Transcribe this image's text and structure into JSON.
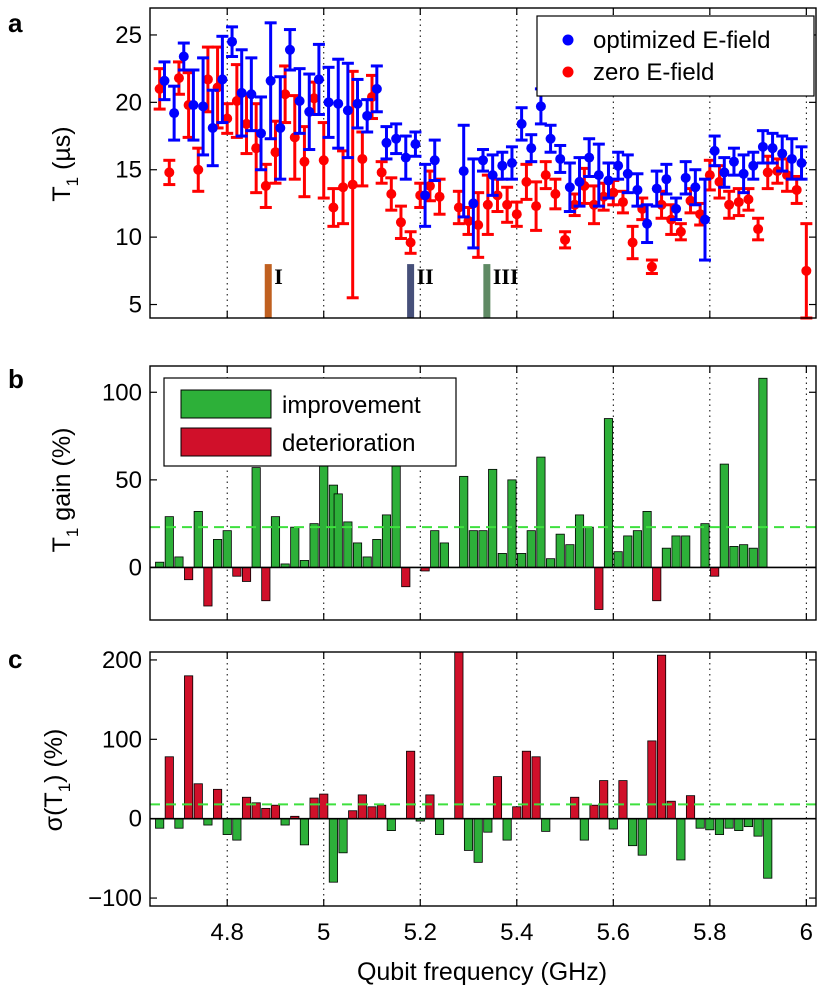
{
  "chart_data": [
    {
      "panel": "a",
      "type": "scatter",
      "ylabel": "T1 (µs)",
      "ylim": [
        4,
        27
      ],
      "yticks": [
        5,
        10,
        15,
        20,
        25
      ],
      "xlim": [
        4.64,
        6.02
      ],
      "legend_position": "top-right",
      "series": [
        {
          "name": "optimized E-field",
          "color": "#0000ff",
          "points": [
            [
              4.67,
              21.6,
              1.4
            ],
            [
              4.69,
              19.2,
              2.0
            ],
            [
              4.71,
              23.4,
              1.0
            ],
            [
              4.73,
              19.8,
              2.6
            ],
            [
              4.75,
              19.7,
              3.6
            ],
            [
              4.77,
              18.1,
              2.8
            ],
            [
              4.79,
              21.7,
              3.2
            ],
            [
              4.81,
              24.5,
              1.1
            ],
            [
              4.83,
              20.7,
              3.2
            ],
            [
              4.85,
              20.6,
              2.7
            ],
            [
              4.87,
              17.7,
              2.7
            ],
            [
              4.89,
              21.6,
              4.3
            ],
            [
              4.91,
              18.1,
              3.8
            ],
            [
              4.93,
              23.9,
              1.5
            ],
            [
              4.95,
              20.1,
              2.4
            ],
            [
              4.97,
              19.3,
              2.8
            ],
            [
              4.99,
              21.7,
              2.6
            ],
            [
              5.01,
              20.0,
              2.6
            ],
            [
              5.03,
              19.9,
              3.3
            ],
            [
              5.05,
              19.4,
              3.5
            ],
            [
              5.07,
              19.9,
              1.8
            ],
            [
              5.09,
              19.0,
              1.2
            ],
            [
              5.11,
              21.0,
              1.7
            ],
            [
              5.13,
              17.0,
              1.2
            ],
            [
              5.15,
              17.3,
              1.1
            ],
            [
              5.17,
              15.9,
              1.6
            ],
            [
              5.19,
              16.9,
              0.9
            ],
            [
              5.21,
              13.1,
              2.3
            ],
            [
              5.23,
              15.7,
              1.5
            ],
            [
              5.29,
              14.9,
              3.4
            ],
            [
              5.31,
              12.5,
              3.3
            ],
            [
              5.33,
              15.7,
              0.8
            ],
            [
              5.35,
              14.6,
              1.5
            ],
            [
              5.37,
              15.3,
              1.0
            ],
            [
              5.39,
              15.5,
              1.2
            ],
            [
              5.41,
              18.4,
              1.2
            ],
            [
              5.43,
              16.6,
              1.0
            ],
            [
              5.45,
              19.7,
              1.3
            ],
            [
              5.47,
              17.3,
              1.0
            ],
            [
              5.49,
              15.8,
              1.0
            ],
            [
              5.51,
              13.7,
              1.8
            ],
            [
              5.53,
              14.1,
              1.8
            ],
            [
              5.55,
              15.9,
              1.4
            ],
            [
              5.57,
              14.6,
              2.3
            ],
            [
              5.59,
              14.2,
              1.3
            ],
            [
              5.61,
              15.3,
              1.0
            ],
            [
              5.63,
              14.7,
              1.4
            ],
            [
              5.65,
              13.5,
              1.2
            ],
            [
              5.67,
              11.0,
              1.4
            ],
            [
              5.69,
              13.6,
              1.3
            ],
            [
              5.71,
              14.3,
              1.1
            ],
            [
              5.73,
              12.1,
              0.8
            ],
            [
              5.75,
              14.4,
              1.2
            ],
            [
              5.77,
              13.7,
              1.3
            ],
            [
              5.79,
              11.3,
              3.0
            ],
            [
              5.81,
              16.4,
              1.1
            ],
            [
              5.83,
              14.8,
              1.1
            ],
            [
              5.85,
              15.6,
              1.0
            ],
            [
              5.87,
              14.7,
              1.4
            ],
            [
              5.89,
              15.3,
              1.0
            ],
            [
              5.91,
              16.7,
              1.2
            ],
            [
              5.93,
              16.6,
              1.1
            ],
            [
              5.95,
              16.2,
              1.3
            ],
            [
              5.97,
              15.8,
              1.5
            ],
            [
              5.99,
              15.5,
              1.2
            ]
          ]
        },
        {
          "name": "zero E-field",
          "color": "#ff0000",
          "points": [
            [
              4.66,
              21.0,
              1.5
            ],
            [
              4.68,
              14.8,
              0.9
            ],
            [
              4.7,
              21.8,
              1.2
            ],
            [
              4.72,
              19.8,
              2.4
            ],
            [
              4.74,
              15.0,
              1.6
            ],
            [
              4.76,
              21.7,
              2.4
            ],
            [
              4.78,
              21.1,
              3.0
            ],
            [
              4.8,
              18.8,
              1.1
            ],
            [
              4.82,
              20.1,
              2.7
            ],
            [
              4.84,
              18.4,
              2.2
            ],
            [
              4.86,
              16.6,
              3.3
            ],
            [
              4.88,
              13.8,
              1.6
            ],
            [
              4.9,
              16.3,
              2.3
            ],
            [
              4.92,
              20.6,
              2.1
            ],
            [
              4.94,
              17.4,
              3.1
            ],
            [
              4.96,
              15.6,
              2.6
            ],
            [
              4.98,
              20.3,
              1.2
            ],
            [
              5.0,
              15.7,
              2.8
            ],
            [
              5.02,
              12.2,
              1.4
            ],
            [
              5.04,
              13.7,
              2.7
            ],
            [
              5.06,
              13.9,
              8.4
            ],
            [
              5.08,
              15.8,
              2.0
            ],
            [
              5.1,
              20.4,
              1.6
            ],
            [
              5.12,
              14.8,
              0.8
            ],
            [
              5.14,
              13.2,
              1.2
            ],
            [
              5.16,
              11.1,
              1.2
            ],
            [
              5.18,
              9.6,
              0.8
            ],
            [
              5.2,
              13.1,
              0.9
            ],
            [
              5.22,
              13.8,
              1.1
            ],
            [
              5.24,
              13.0,
              1.3
            ],
            [
              5.28,
              12.2,
              1.2
            ],
            [
              5.3,
              11.2,
              1.0
            ],
            [
              5.32,
              10.9,
              2.4
            ],
            [
              5.34,
              12.4,
              2.2
            ],
            [
              5.36,
              13.1,
              1.2
            ],
            [
              5.38,
              12.4,
              1.3
            ],
            [
              5.4,
              11.7,
              0.9
            ],
            [
              5.42,
              14.1,
              1.3
            ],
            [
              5.44,
              12.3,
              1.8
            ],
            [
              5.46,
              14.6,
              1.0
            ],
            [
              5.48,
              13.2,
              1.1
            ],
            [
              5.5,
              9.8,
              0.6
            ],
            [
              5.52,
              12.4,
              0.8
            ],
            [
              5.54,
              13.8,
              1.3
            ],
            [
              5.56,
              12.4,
              1.4
            ],
            [
              5.58,
              13.0,
              1.0
            ],
            [
              5.6,
              13.3,
              0.9
            ],
            [
              5.62,
              12.6,
              0.8
            ],
            [
              5.64,
              9.6,
              1.2
            ],
            [
              5.66,
              12.1,
              0.8
            ],
            [
              5.68,
              7.8,
              0.5
            ],
            [
              5.7,
              12.4,
              1.0
            ],
            [
              5.72,
              11.3,
              1.1
            ],
            [
              5.74,
              10.4,
              0.6
            ],
            [
              5.76,
              12.7,
              0.9
            ],
            [
              5.78,
              11.7,
              0.8
            ],
            [
              5.8,
              14.6,
              1.1
            ],
            [
              5.82,
              14.1,
              1.2
            ],
            [
              5.84,
              12.4,
              1.0
            ],
            [
              5.86,
              12.6,
              1.0
            ],
            [
              5.88,
              12.8,
              0.8
            ],
            [
              5.9,
              10.6,
              0.8
            ],
            [
              5.92,
              14.8,
              1.2
            ],
            [
              5.94,
              14.9,
              0.9
            ],
            [
              5.96,
              14.6,
              1.2
            ],
            [
              5.98,
              13.5,
              1.0
            ],
            [
              6.0,
              7.5,
              3.5
            ]
          ]
        }
      ],
      "markers": [
        {
          "label": "I",
          "x": 4.885,
          "color": "#c06020",
          "y_top": 8
        },
        {
          "label": "II",
          "x": 5.18,
          "color": "#46507a",
          "y_top": 8
        },
        {
          "label": "III",
          "x": 5.338,
          "color": "#5f8a64",
          "y_top": 8
        }
      ]
    },
    {
      "panel": "b",
      "type": "bar",
      "ylabel": "T1 gain (%)",
      "ylim": [
        -30,
        115
      ],
      "yticks": [
        0,
        50,
        100
      ],
      "xlim": [
        4.64,
        6.02
      ],
      "reference_line": 23,
      "legend_position": "top-left",
      "series": [
        {
          "name": "improvement",
          "color": "#2db039"
        },
        {
          "name": "deterioration",
          "color": "#d0102a"
        }
      ],
      "x": [
        4.66,
        4.68,
        4.7,
        4.72,
        4.74,
        4.76,
        4.78,
        4.8,
        4.82,
        4.84,
        4.86,
        4.88,
        4.9,
        4.92,
        4.94,
        4.96,
        4.98,
        5.0,
        5.02,
        5.03,
        5.05,
        5.07,
        5.09,
        5.11,
        5.13,
        5.15,
        5.17,
        5.19,
        5.21,
        5.23,
        5.25,
        5.29,
        5.31,
        5.33,
        5.35,
        5.37,
        5.39,
        5.41,
        5.43,
        5.45,
        5.47,
        5.49,
        5.51,
        5.53,
        5.55,
        5.57,
        5.59,
        5.61,
        5.63,
        5.65,
        5.67,
        5.69,
        5.71,
        5.73,
        5.75,
        5.77,
        5.79,
        5.81,
        5.83,
        5.85,
        5.87,
        5.89,
        5.91,
        5.93,
        5.95,
        5.97,
        5.99
      ],
      "values": [
        3,
        29,
        6,
        -7,
        32,
        -22,
        16,
        21,
        -5,
        -8,
        57,
        -19,
        29,
        2,
        23,
        4,
        25,
        60,
        47,
        42,
        26,
        14,
        6,
        16,
        30,
        58,
        -11,
        0,
        -2,
        21,
        14,
        52,
        21,
        21,
        56,
        8,
        50,
        8,
        21,
        63,
        5,
        19,
        13,
        30,
        23,
        -24,
        85,
        9,
        18,
        21,
        32,
        -19,
        11,
        18,
        18,
        0,
        25,
        -5,
        59,
        12,
        13,
        11,
        108,
        0,
        0,
        0,
        0
      ]
    },
    {
      "panel": "c",
      "type": "bar",
      "ylabel": "σ(T1) (%)",
      "ylim": [
        -110,
        210
      ],
      "yticks": [
        -100,
        0,
        100,
        200
      ],
      "xlim": [
        4.64,
        6.02
      ],
      "xlabel": "Qubit frequency (GHz)",
      "xticks": [
        4.8,
        5,
        5.2,
        5.4,
        5.6,
        5.8,
        6
      ],
      "reference_line": 18,
      "x": [
        4.66,
        4.68,
        4.7,
        4.72,
        4.74,
        4.76,
        4.78,
        4.8,
        4.82,
        4.84,
        4.86,
        4.88,
        4.9,
        4.92,
        4.94,
        4.96,
        4.98,
        5.0,
        5.02,
        5.04,
        5.06,
        5.08,
        5.1,
        5.12,
        5.14,
        5.16,
        5.18,
        5.2,
        5.22,
        5.24,
        5.28,
        5.3,
        5.32,
        5.34,
        5.36,
        5.38,
        5.4,
        5.42,
        5.44,
        5.46,
        5.48,
        5.5,
        5.52,
        5.54,
        5.56,
        5.58,
        5.6,
        5.62,
        5.64,
        5.66,
        5.68,
        5.7,
        5.72,
        5.74,
        5.76,
        5.78,
        5.8,
        5.82,
        5.84,
        5.86,
        5.88,
        5.9,
        5.92,
        5.94,
        5.96,
        5.98,
        6.0
      ],
      "values": [
        -12,
        78,
        -12,
        180,
        44,
        -8,
        37,
        -20,
        -27,
        27,
        20,
        13,
        17,
        -8,
        3,
        -33,
        26,
        31,
        -80,
        -43,
        10,
        30,
        15,
        17,
        -15,
        0,
        85,
        -3,
        30,
        -20,
        210,
        -40,
        -55,
        -17,
        53,
        -27,
        15,
        85,
        78,
        -16,
        0,
        0,
        27,
        -27,
        17,
        48,
        -13,
        48,
        -34,
        -46,
        98,
        206,
        22,
        -52,
        29,
        -12,
        -14,
        -20,
        -12,
        -15,
        -10,
        -22,
        -75,
        0,
        0,
        0,
        0
      ]
    }
  ],
  "panels": {
    "a": {
      "letter": "a",
      "ylabel_main": "T",
      "ylabel_sub": "1",
      "ylabel_tail": " (µs)"
    },
    "b": {
      "letter": "b",
      "ylabel_main": "T",
      "ylabel_sub": "1",
      "ylabel_tail": " gain (%)"
    },
    "c": {
      "letter": "c",
      "ylabel_pre": "σ(T",
      "ylabel_sub": "1",
      "ylabel_tail": ") (%)"
    }
  },
  "legend_a": {
    "optimized": "optimized E-field",
    "zero": "zero E-field"
  },
  "legend_b": {
    "improvement": "improvement",
    "deterioration": "deterioration"
  },
  "xaxis": {
    "label": "Qubit frequency (GHz)",
    "ticks": [
      "4.8",
      "5",
      "5.2",
      "5.4",
      "5.6",
      "5.8",
      "6"
    ]
  },
  "markers_text": {
    "I": "I",
    "II": "II",
    "III": "III"
  }
}
